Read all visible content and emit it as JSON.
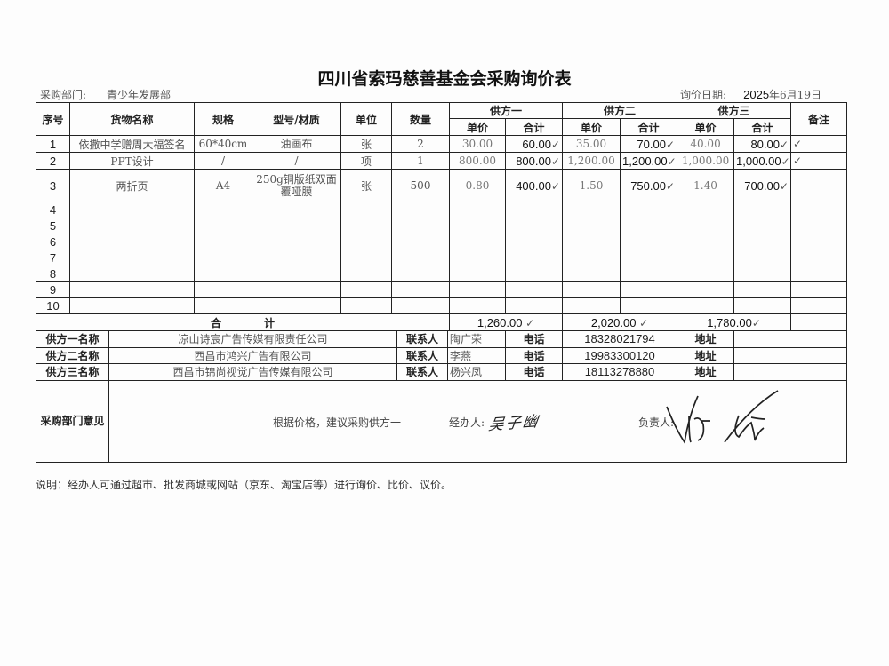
{
  "title": "四川省索玛慈善基金会采购询价表",
  "department_label": "采购部门:",
  "department": "青少年发展部",
  "date_label": "询价日期:",
  "date_year": "2025",
  "date_rest": "年6月19日",
  "headers": {
    "no": "序号",
    "item": "货物名称",
    "spec": "规格",
    "model": "型号/材质",
    "unit": "单位",
    "qty": "数量",
    "s1": "供方一",
    "s2": "供方二",
    "s3": "供方三",
    "remark": "备注",
    "unit_price": "单价",
    "total": "合计"
  },
  "rows": [
    {
      "no": "1",
      "item": "依撒中学赠周大福签名",
      "spec": "60*40cm",
      "model": "油画布",
      "unit": "张",
      "qty": "2",
      "p1": "30.00",
      "t1": "60.00",
      "p2": "35.00",
      "t2": "70.00",
      "p3": "40.00",
      "t3": "80.00"
    },
    {
      "no": "2",
      "item": "PPT设计",
      "spec": "/",
      "model": "/",
      "unit": "项",
      "qty": "1",
      "p1": "800.00",
      "t1": "800.00",
      "p2": "1,200.00",
      "t2": "1,200.00",
      "p3": "1,000.00",
      "t3": "1,000.00"
    },
    {
      "no": "3",
      "item": "两折页",
      "spec": "A4",
      "model": "250g铜版纸双面覆哑膜",
      "unit": "张",
      "qty": "500",
      "p1": "0.80",
      "t1": "400.00",
      "p2": "1.50",
      "t2": "750.00",
      "p3": "1.40",
      "t3": "700.00"
    }
  ],
  "empty_rows": [
    "4",
    "5",
    "6",
    "7",
    "8",
    "9",
    "10"
  ],
  "total_label": "合　　　　计",
  "totals": {
    "s1": "1,260.00",
    "s2": "2,020.00",
    "s3": "1,780.00"
  },
  "check": "✓",
  "suppliers": [
    {
      "label": "供方一名称",
      "name": "凉山诗宸广告传媒有限责任公司",
      "contact_label": "联系人",
      "contact": "陶广荣",
      "phone_label": "电话",
      "phone": "18328021794",
      "address_label": "地址"
    },
    {
      "label": "供方二名称",
      "name": "西昌市鸿兴广告有限公司",
      "contact_label": "联系人",
      "contact": "李燕",
      "phone_label": "电话",
      "phone": "19983300120",
      "address_label": "地址"
    },
    {
      "label": "供方三名称",
      "name": "西昌市锦尚视觉广告传媒有限公司",
      "contact_label": "联系人",
      "contact": "杨兴凤",
      "phone_label": "电话",
      "phone": "18113278880",
      "address_label": "地址"
    }
  ],
  "opinion": {
    "label": "采购部门意见",
    "text": "根据价格，建议采购供方一",
    "handler_label": "经办人:",
    "handler_signature": "吴子幽",
    "leader_label": "负责人:"
  },
  "note": "说明：经办人可通过超市、批发商城或网站（京东、淘宝店等）进行询价、比价、议价。"
}
